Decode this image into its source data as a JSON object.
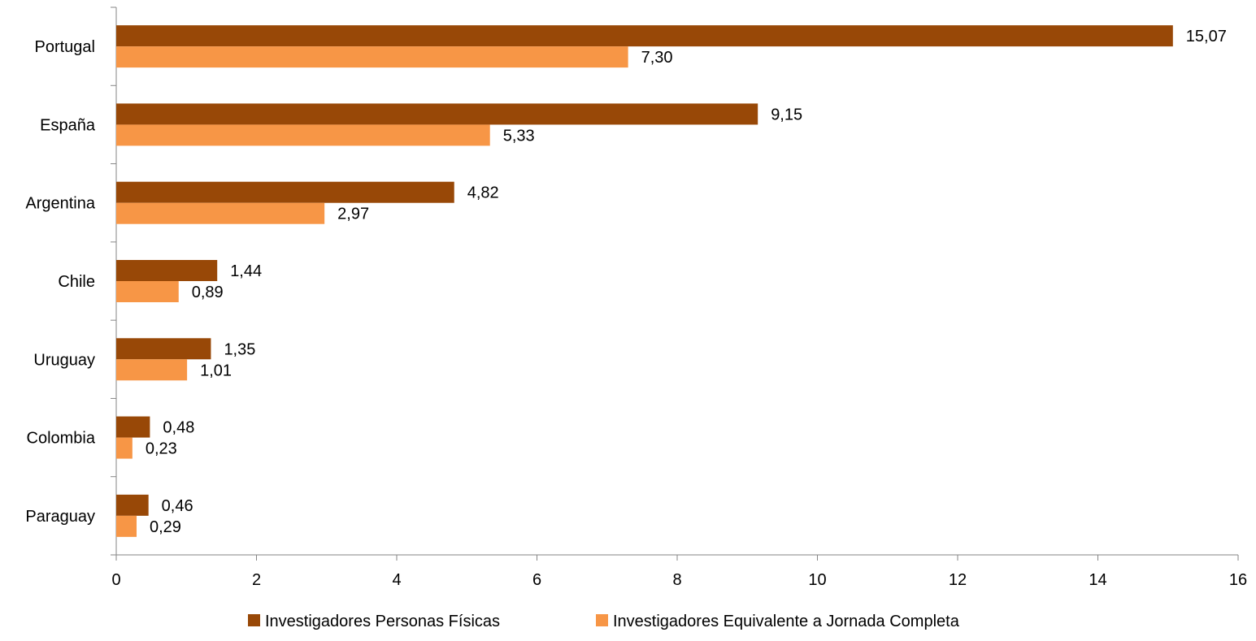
{
  "chart_data": {
    "type": "bar",
    "orientation": "horizontal",
    "title": "",
    "xlabel": "",
    "ylabel": "",
    "categories": [
      "Portugal",
      "España",
      "Argentina",
      "Chile",
      "Uruguay",
      "Colombia",
      "Paraguay"
    ],
    "series": [
      {
        "name": "Investigadores Personas Físicas",
        "color": "#984807",
        "values": [
          15.07,
          9.15,
          4.82,
          1.44,
          1.35,
          0.48,
          0.46
        ],
        "labels": [
          "15,07",
          "9,15",
          "4,82",
          "1,44",
          "1,35",
          "0,48",
          "0,46"
        ]
      },
      {
        "name": "Investigadores Equivalente a Jornada Completa",
        "color": "#F79646",
        "values": [
          7.3,
          5.33,
          2.97,
          0.89,
          1.01,
          0.23,
          0.29
        ],
        "labels": [
          "7,30",
          "5,33",
          "2,97",
          "0,89",
          "1,01",
          "0,23",
          "0,29"
        ]
      }
    ],
    "xlim": [
      0,
      16
    ],
    "xticks": [
      0,
      2,
      4,
      6,
      8,
      10,
      12,
      14,
      16
    ],
    "xtick_labels": [
      "0",
      "2",
      "4",
      "6",
      "8",
      "10",
      "12",
      "14",
      "16"
    ],
    "grid": false,
    "legend_position": "bottom"
  }
}
